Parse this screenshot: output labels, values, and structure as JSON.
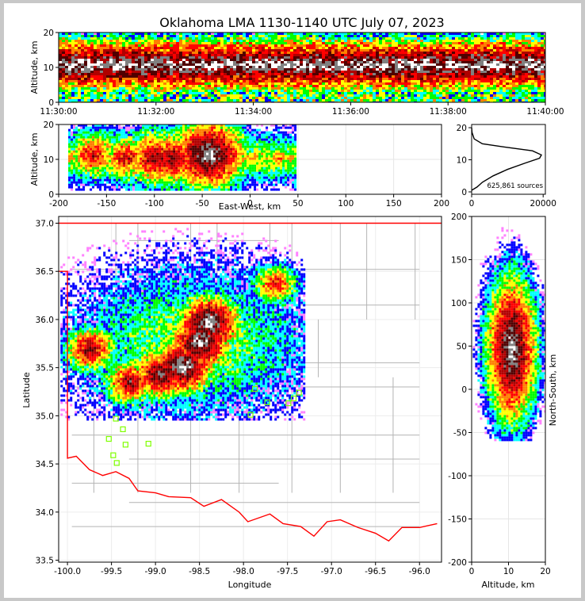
{
  "title": "Oklahoma LMA 1130-1140 UTC July 07, 2023",
  "colors": {
    "density_scale": [
      "#ff80ff",
      "#0000ff",
      "#00ffff",
      "#00ff00",
      "#ffff00",
      "#ff8000",
      "#ff0000",
      "#b00000",
      "#500000",
      "#808080",
      "#ffffff"
    ],
    "state_border": "#ff0000",
    "county_lines": "#b4b4b4",
    "station_marker": "#7fff00"
  },
  "chart_data": [
    {
      "panel": "time-altitude",
      "type": "heatmap",
      "ylabel": "Altitude, km",
      "xlabel": "",
      "x_ticks": [
        "11:30:00",
        "11:32:00",
        "11:34:00",
        "11:36:00",
        "11:38:00",
        "11:40:00"
      ],
      "xlim_minutes": [
        0,
        10
      ],
      "ylim": [
        0,
        20
      ],
      "y_ticks": [
        0,
        10,
        20
      ],
      "density_core_altitude_km": [
        9,
        13
      ],
      "grid": false
    },
    {
      "panel": "east-west-altitude",
      "type": "heatmap",
      "xlabel": "East-West, km",
      "ylabel": "Altitude, km",
      "xlim": [
        -200,
        200
      ],
      "ylim": [
        0,
        20
      ],
      "x_ticks": [
        -200,
        -150,
        -100,
        -50,
        0,
        50,
        100,
        150,
        200
      ],
      "y_ticks": [
        0,
        10,
        20
      ],
      "cells": [
        {
          "x": -165,
          "z": 11,
          "density": 7
        },
        {
          "x": -130,
          "z": 10,
          "density": 7
        },
        {
          "x": -100,
          "z": 10,
          "density": 8
        },
        {
          "x": -80,
          "z": 10,
          "density": 8
        },
        {
          "x": -55,
          "z": 11,
          "density": 8
        },
        {
          "x": -45,
          "z": 11,
          "density": 10
        },
        {
          "x": 30,
          "z": 10,
          "density": 5
        }
      ],
      "grid": true
    },
    {
      "panel": "altitude-histogram",
      "type": "line",
      "xlim": [
        0,
        20000
      ],
      "ylim": [
        0,
        20
      ],
      "x_ticks": [
        0,
        20000
      ],
      "y_ticks": [
        0,
        10,
        20
      ],
      "annotation": "625,861 sources",
      "x": [
        0,
        1500,
        3000,
        6000,
        10000,
        15000,
        19000,
        19500,
        17000,
        9000,
        3000,
        700,
        100,
        0
      ],
      "y": [
        0.5,
        1.5,
        3,
        5,
        7,
        9,
        10.5,
        11.5,
        12.8,
        14,
        15,
        16.5,
        18.5,
        20
      ]
    },
    {
      "panel": "plan-view",
      "type": "heatmap",
      "xlabel": "Longitude",
      "ylabel": "Latitude",
      "xlim": [
        -100.1,
        -95.75
      ],
      "ylim": [
        33.48,
        37.07
      ],
      "x_ticks": [
        -100.0,
        -99.5,
        -99.0,
        -98.5,
        -98.0,
        -97.5,
        -97.0,
        -96.5,
        -96.0
      ],
      "y_ticks": [
        33.5,
        34.0,
        34.5,
        35.0,
        35.5,
        36.0,
        36.5,
        37.0
      ],
      "x_tick_labels": [
        "-100.0",
        "-99.5",
        "-99.0",
        "-98.5",
        "-98.0",
        "-97.5",
        "-97.0",
        "-96.5",
        "-96.0"
      ],
      "y_tick_labels": [
        "33.5",
        "34.0",
        "34.5",
        "35.0",
        "35.5",
        "36.0",
        "36.5",
        "37.0"
      ],
      "cells": [
        {
          "lon": -99.75,
          "lat": 35.68,
          "density": 8
        },
        {
          "lon": -99.3,
          "lat": 35.33,
          "density": 8
        },
        {
          "lon": -98.95,
          "lat": 35.42,
          "density": 9
        },
        {
          "lon": -98.7,
          "lat": 35.5,
          "density": 10
        },
        {
          "lon": -98.5,
          "lat": 35.75,
          "density": 10
        },
        {
          "lon": -98.4,
          "lat": 35.95,
          "density": 10
        },
        {
          "lon": -97.65,
          "lat": 36.35,
          "density": 7
        }
      ],
      "stations": [
        {
          "lon": -99.53,
          "lat": 34.76
        },
        {
          "lon": -99.48,
          "lat": 34.59
        },
        {
          "lon": -99.44,
          "lat": 34.51
        },
        {
          "lon": -99.34,
          "lat": 34.7
        },
        {
          "lon": -99.37,
          "lat": 34.86
        },
        {
          "lon": -99.08,
          "lat": 34.71
        },
        {
          "lon": -99.45,
          "lat": 34.97
        },
        {
          "lon": -97.92,
          "lat": 35.01
        },
        {
          "lon": -97.73,
          "lat": 35.14
        },
        {
          "lon": -97.49,
          "lat": 35.13
        },
        {
          "lon": -97.43,
          "lat": 35.18
        },
        {
          "lon": -97.37,
          "lat": 35.24
        },
        {
          "lon": -97.87,
          "lat": 35.28
        }
      ],
      "grid": true
    },
    {
      "panel": "north-south-altitude",
      "type": "heatmap",
      "xlabel": "Altitude, km",
      "ylabel": "North-South, km",
      "xlim": [
        0,
        20
      ],
      "ylim": [
        -200,
        200
      ],
      "x_ticks": [
        0,
        10,
        20
      ],
      "y_ticks": [
        -200,
        -150,
        -100,
        -50,
        0,
        50,
        100,
        150,
        200
      ],
      "grid": true
    }
  ]
}
